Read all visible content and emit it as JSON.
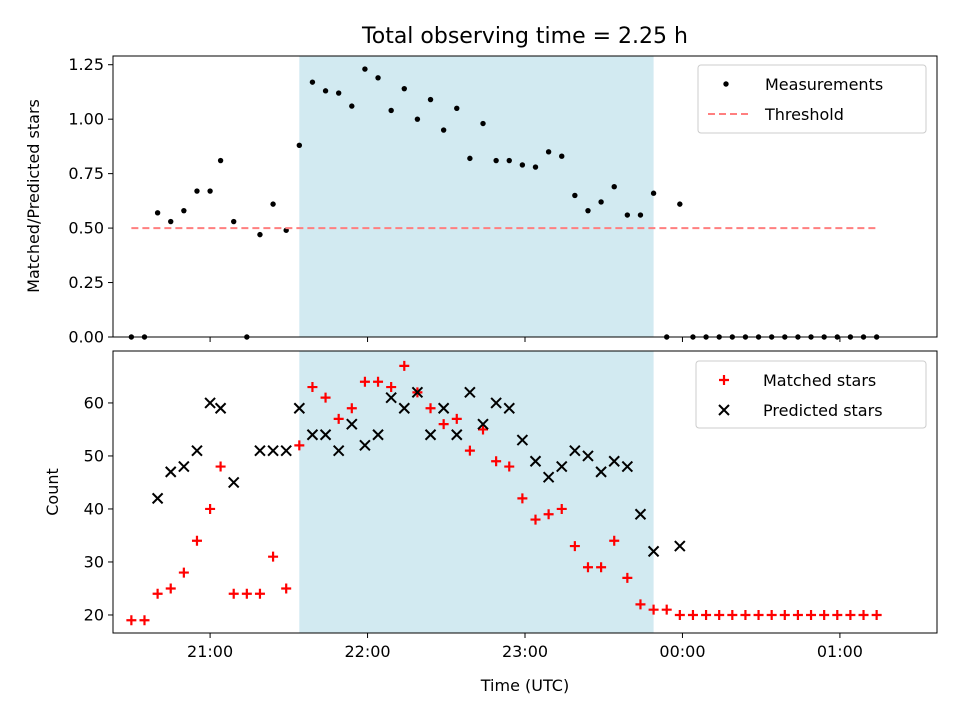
{
  "chart_data": [
    {
      "type": "scatter",
      "title": "Total observing time = 2.25 h",
      "xlabel": "",
      "ylabel": "Matched/Predicted stars",
      "ylim": [
        0,
        1.29
      ],
      "xlim": [
        "20:23",
        "01:37"
      ],
      "yticks": [
        "0.00",
        "0.25",
        "0.50",
        "0.75",
        "1.00",
        "1.25"
      ],
      "shaded_span": {
        "from": "21:34",
        "to": "23:49",
        "color": "#add8e6"
      },
      "legend": {
        "position": "top-right",
        "entries": [
          "Measurements",
          "Threshold"
        ]
      },
      "series": [
        {
          "name": "Measurements",
          "marker": "dot",
          "color": "#000000",
          "points": [
            [
              "20:30",
              0.0
            ],
            [
              "20:35",
              0.0
            ],
            [
              "20:40",
              0.57
            ],
            [
              "20:45",
              0.53
            ],
            [
              "20:50",
              0.58
            ],
            [
              "20:55",
              0.67
            ],
            [
              "21:00",
              0.67
            ],
            [
              "21:04",
              0.81
            ],
            [
              "21:09",
              0.53
            ],
            [
              "21:14",
              0.0
            ],
            [
              "21:19",
              0.47
            ],
            [
              "21:24",
              0.61
            ],
            [
              "21:29",
              0.49
            ],
            [
              "21:34",
              0.88
            ],
            [
              "21:39",
              1.17
            ],
            [
              "21:44",
              1.13
            ],
            [
              "21:49",
              1.12
            ],
            [
              "21:54",
              1.06
            ],
            [
              "21:59",
              1.23
            ],
            [
              "22:04",
              1.19
            ],
            [
              "22:09",
              1.04
            ],
            [
              "22:14",
              1.14
            ],
            [
              "22:19",
              1.0
            ],
            [
              "22:24",
              1.09
            ],
            [
              "22:29",
              0.95
            ],
            [
              "22:34",
              1.05
            ],
            [
              "22:39",
              0.82
            ],
            [
              "22:44",
              0.98
            ],
            [
              "22:49",
              0.81
            ],
            [
              "22:54",
              0.81
            ],
            [
              "22:59",
              0.79
            ],
            [
              "23:04",
              0.78
            ],
            [
              "23:09",
              0.85
            ],
            [
              "23:14",
              0.83
            ],
            [
              "23:19",
              0.65
            ],
            [
              "23:24",
              0.58
            ],
            [
              "23:29",
              0.62
            ],
            [
              "23:34",
              0.69
            ],
            [
              "23:39",
              0.56
            ],
            [
              "23:44",
              0.56
            ],
            [
              "23:49",
              0.66
            ],
            [
              "23:54",
              0.0
            ],
            [
              "23:59",
              0.61
            ],
            [
              "00:04",
              0.0
            ],
            [
              "00:09",
              0.0
            ],
            [
              "00:14",
              0.0
            ],
            [
              "00:19",
              0.0
            ],
            [
              "00:24",
              0.0
            ],
            [
              "00:29",
              0.0
            ],
            [
              "00:34",
              0.0
            ],
            [
              "00:39",
              0.0
            ],
            [
              "00:44",
              0.0
            ],
            [
              "00:49",
              0.0
            ],
            [
              "00:54",
              0.0
            ],
            [
              "00:59",
              0.0
            ],
            [
              "01:04",
              0.0
            ],
            [
              "01:09",
              0.0
            ],
            [
              "01:14",
              0.0
            ]
          ]
        },
        {
          "name": "Threshold",
          "style": "dashed-line",
          "color": "#ff7f7f",
          "points": [
            [
              "20:30",
              0.5
            ],
            [
              "01:14",
              0.5
            ]
          ]
        }
      ]
    },
    {
      "type": "scatter",
      "title": "",
      "xlabel": "Time (UTC)",
      "ylabel": "Count",
      "ylim": [
        16.6,
        69.8
      ],
      "xlim": [
        "20:23",
        "01:37"
      ],
      "yticks": [
        "20",
        "30",
        "40",
        "50",
        "60"
      ],
      "xticks": [
        "21:00",
        "22:00",
        "23:00",
        "00:00",
        "01:00"
      ],
      "shaded_span": {
        "from": "21:34",
        "to": "23:49",
        "color": "#add8e6"
      },
      "legend": {
        "position": "top-right",
        "entries": [
          "Matched stars",
          "Predicted stars"
        ]
      },
      "series": [
        {
          "name": "Matched stars",
          "marker": "plus",
          "color": "#ff0000",
          "points": [
            [
              "20:30",
              19
            ],
            [
              "20:35",
              19
            ],
            [
              "20:40",
              24
            ],
            [
              "20:45",
              25
            ],
            [
              "20:50",
              28
            ],
            [
              "20:55",
              34
            ],
            [
              "21:00",
              40
            ],
            [
              "21:04",
              48
            ],
            [
              "21:09",
              24
            ],
            [
              "21:14",
              24
            ],
            [
              "21:19",
              24
            ],
            [
              "21:24",
              31
            ],
            [
              "21:29",
              25
            ],
            [
              "21:34",
              52
            ],
            [
              "21:39",
              63
            ],
            [
              "21:44",
              61
            ],
            [
              "21:49",
              57
            ],
            [
              "21:54",
              59
            ],
            [
              "21:59",
              64
            ],
            [
              "22:04",
              64
            ],
            [
              "22:09",
              63
            ],
            [
              "22:14",
              67
            ],
            [
              "22:19",
              62
            ],
            [
              "22:24",
              59
            ],
            [
              "22:29",
              56
            ],
            [
              "22:34",
              57
            ],
            [
              "22:39",
              51
            ],
            [
              "22:44",
              55
            ],
            [
              "22:49",
              49
            ],
            [
              "22:54",
              48
            ],
            [
              "22:59",
              42
            ],
            [
              "23:04",
              38
            ],
            [
              "23:09",
              39
            ],
            [
              "23:14",
              40
            ],
            [
              "23:19",
              33
            ],
            [
              "23:24",
              29
            ],
            [
              "23:29",
              29
            ],
            [
              "23:34",
              34
            ],
            [
              "23:39",
              27
            ],
            [
              "23:44",
              22
            ],
            [
              "23:49",
              21
            ],
            [
              "23:54",
              21
            ],
            [
              "23:59",
              20
            ],
            [
              "00:04",
              20
            ],
            [
              "00:09",
              20
            ],
            [
              "00:14",
              20
            ],
            [
              "00:19",
              20
            ],
            [
              "00:24",
              20
            ],
            [
              "00:29",
              20
            ],
            [
              "00:34",
              20
            ],
            [
              "00:39",
              20
            ],
            [
              "00:44",
              20
            ],
            [
              "00:49",
              20
            ],
            [
              "00:54",
              20
            ],
            [
              "00:59",
              20
            ],
            [
              "01:04",
              20
            ],
            [
              "01:09",
              20
            ],
            [
              "01:14",
              20
            ]
          ]
        },
        {
          "name": "Predicted stars",
          "marker": "x",
          "color": "#000000",
          "points": [
            [
              "20:40",
              42
            ],
            [
              "20:45",
              47
            ],
            [
              "20:50",
              48
            ],
            [
              "20:55",
              51
            ],
            [
              "21:00",
              60
            ],
            [
              "21:04",
              59
            ],
            [
              "21:09",
              45
            ],
            [
              "21:19",
              51
            ],
            [
              "21:24",
              51
            ],
            [
              "21:29",
              51
            ],
            [
              "21:34",
              59
            ],
            [
              "21:39",
              54
            ],
            [
              "21:44",
              54
            ],
            [
              "21:49",
              51
            ],
            [
              "21:54",
              56
            ],
            [
              "21:59",
              52
            ],
            [
              "22:04",
              54
            ],
            [
              "22:09",
              61
            ],
            [
              "22:14",
              59
            ],
            [
              "22:19",
              62
            ],
            [
              "22:24",
              54
            ],
            [
              "22:29",
              59
            ],
            [
              "22:34",
              54
            ],
            [
              "22:39",
              62
            ],
            [
              "22:44",
              56
            ],
            [
              "22:49",
              60
            ],
            [
              "22:54",
              59
            ],
            [
              "22:59",
              53
            ],
            [
              "23:04",
              49
            ],
            [
              "23:09",
              46
            ],
            [
              "23:14",
              48
            ],
            [
              "23:19",
              51
            ],
            [
              "23:24",
              50
            ],
            [
              "23:29",
              47
            ],
            [
              "23:34",
              49
            ],
            [
              "23:39",
              48
            ],
            [
              "23:44",
              39
            ],
            [
              "23:49",
              32
            ],
            [
              "23:59",
              33
            ]
          ]
        }
      ]
    }
  ]
}
